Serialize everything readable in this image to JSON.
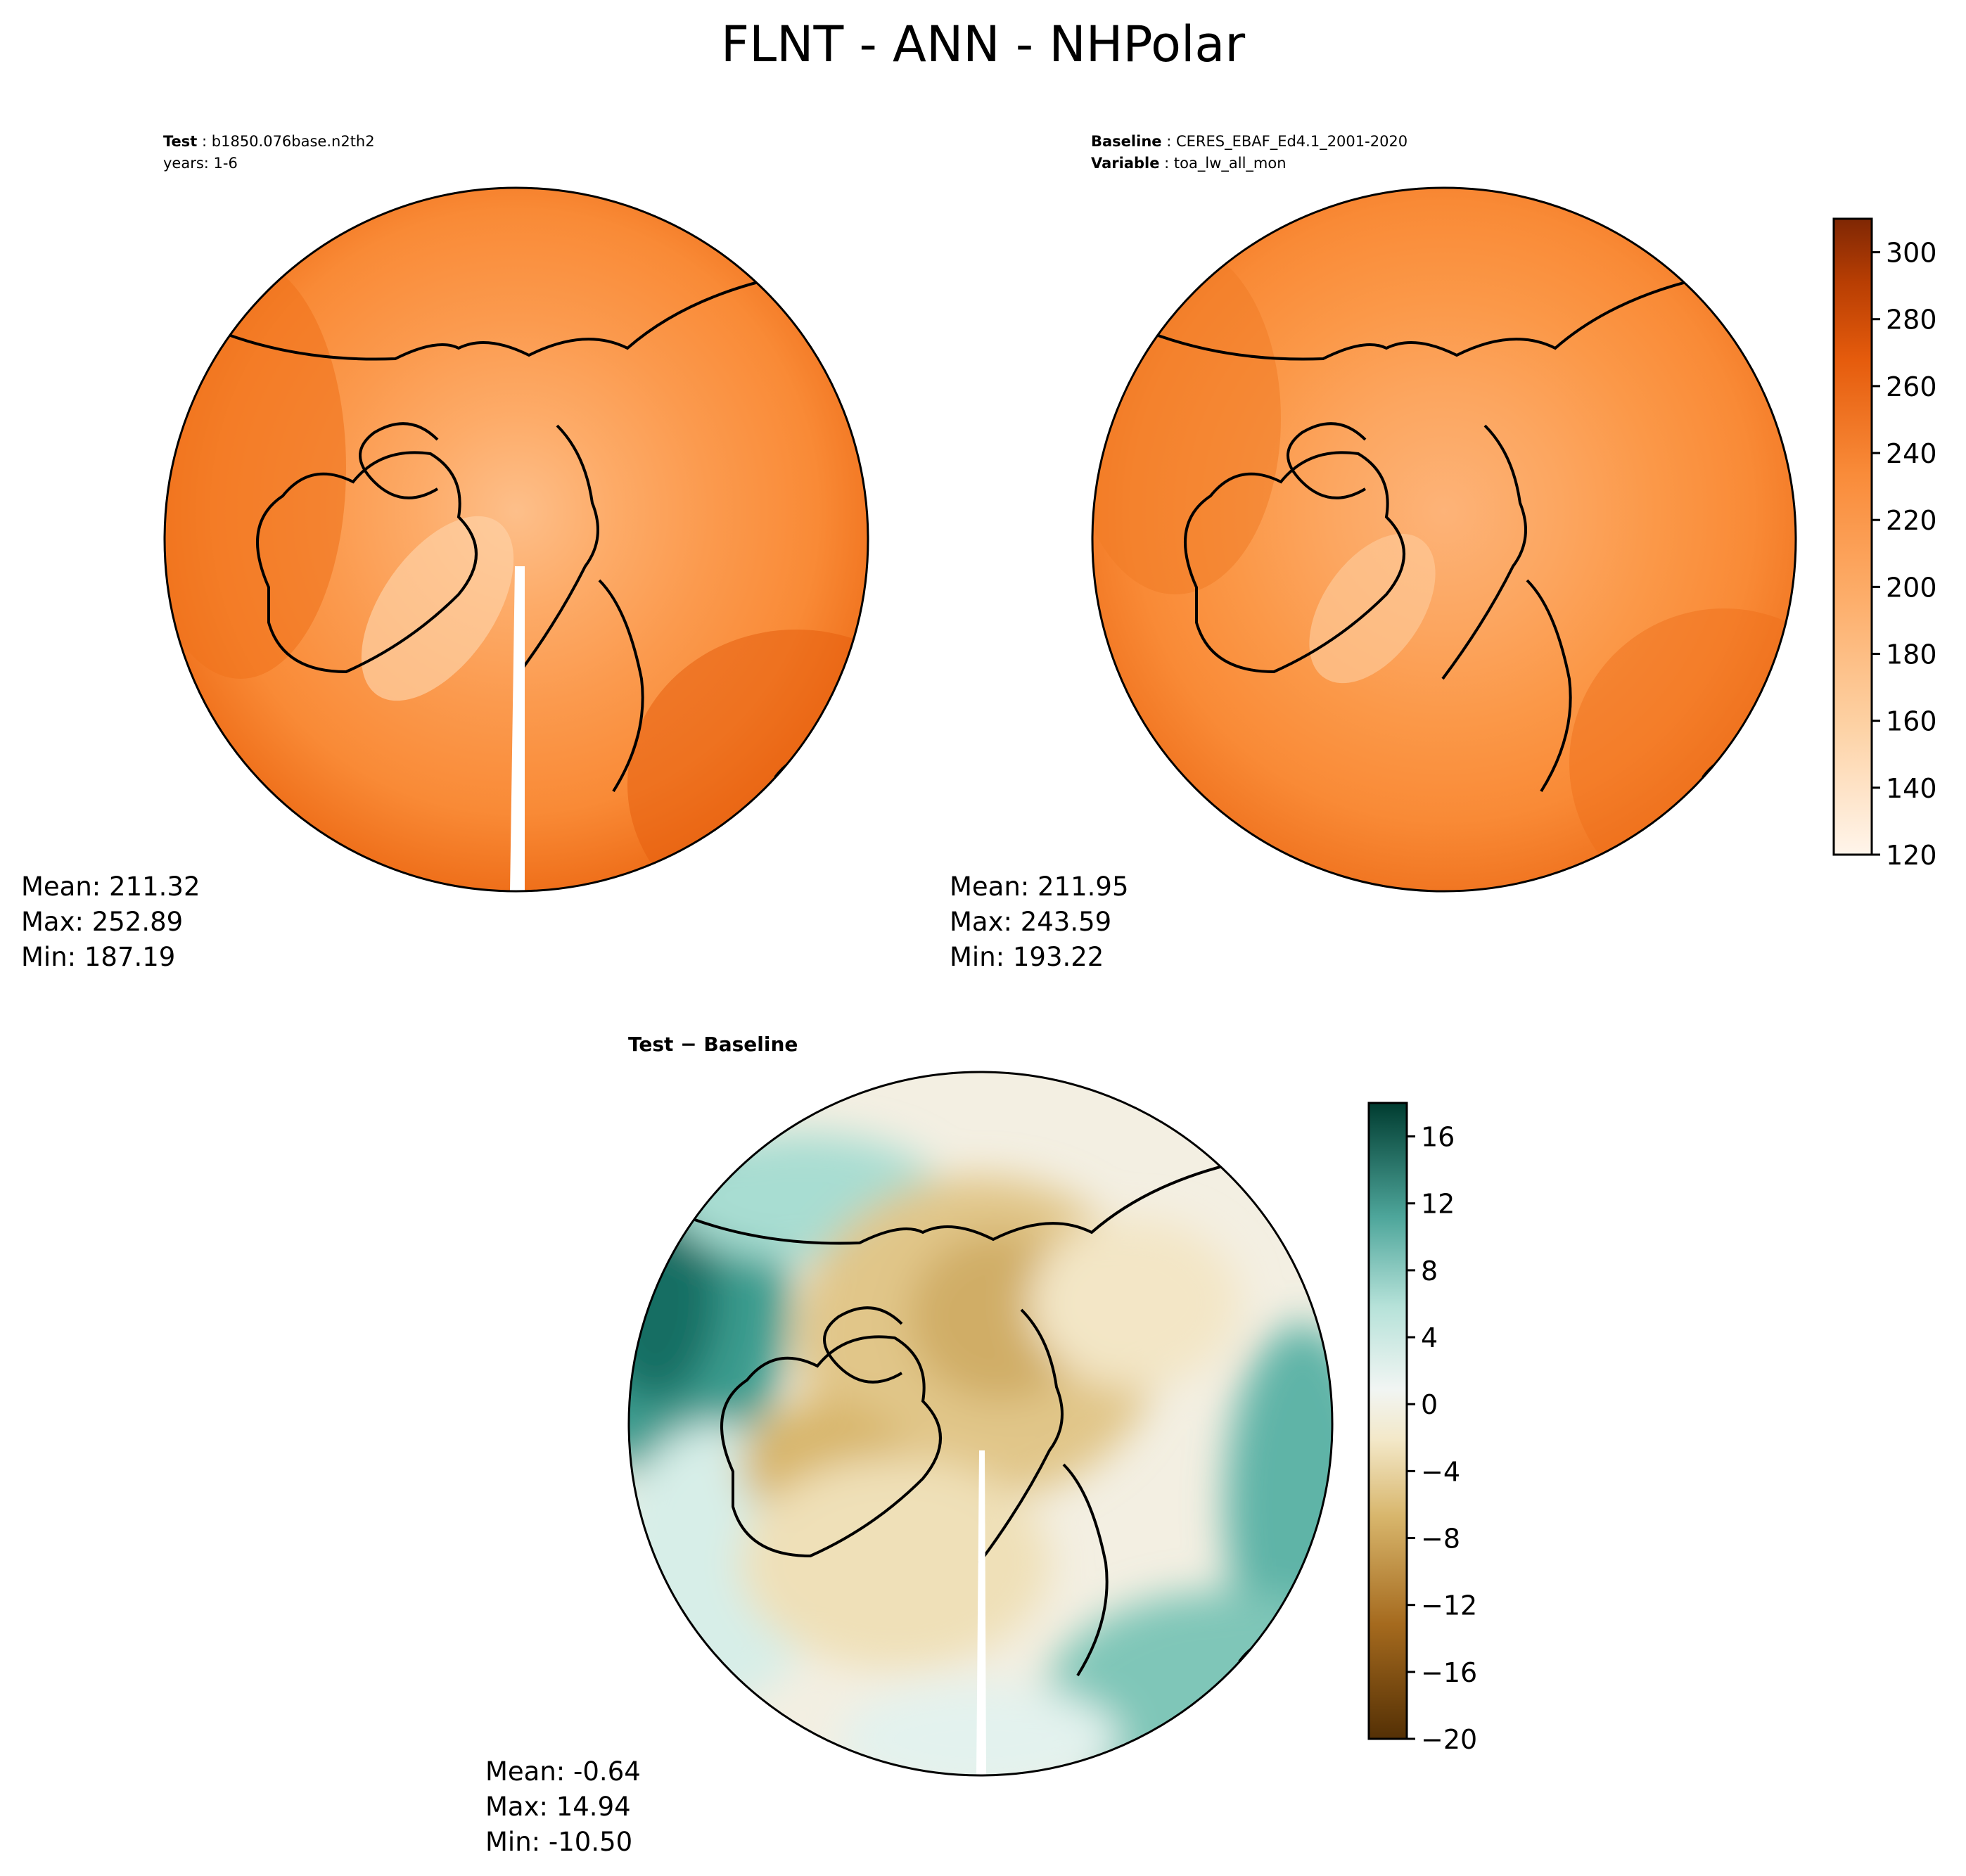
{
  "title": "FLNT - ANN - NHPolar",
  "test_panel": {
    "label": "Test",
    "case": "b1850.076base.n2th2",
    "years": "years: 1-6",
    "stats": {
      "mean": "Mean: 211.32",
      "max": "Max: 252.89",
      "min": "Min: 187.19"
    }
  },
  "baseline_panel": {
    "label": "Baseline",
    "case": "CERES_EBAF_Ed4.1_2001-2020",
    "variable_label": "Variable",
    "variable": "toa_lw_all_mon",
    "stats": {
      "mean": "Mean: 211.95",
      "max": "Max: 243.59",
      "min": "Min: 193.22"
    }
  },
  "diff_panel": {
    "title": "Test − Baseline",
    "stats": {
      "mean": "Mean: -0.64",
      "max": "Max: 14.94",
      "min": "Min: -10.50"
    }
  },
  "colorbar_main": {
    "ticks": [
      "120",
      "140",
      "160",
      "180",
      "200",
      "220",
      "240",
      "260",
      "280",
      "300"
    ],
    "colormap": "Oranges",
    "range": [
      120,
      310
    ]
  },
  "colorbar_diff": {
    "ticks": [
      "−20",
      "−16",
      "−12",
      "−8",
      "−4",
      "0",
      "4",
      "8",
      "12",
      "16"
    ],
    "colormap": "BrBG",
    "range": [
      -20,
      18
    ]
  },
  "colors": {
    "map_base": "#f98e3e",
    "map_light": "#fdb67b",
    "map_dark": "#ea6612",
    "diff_neutral": "#f4f1e6",
    "diff_teal": "#4ea69b",
    "diff_brown": "#d8b66c"
  }
}
